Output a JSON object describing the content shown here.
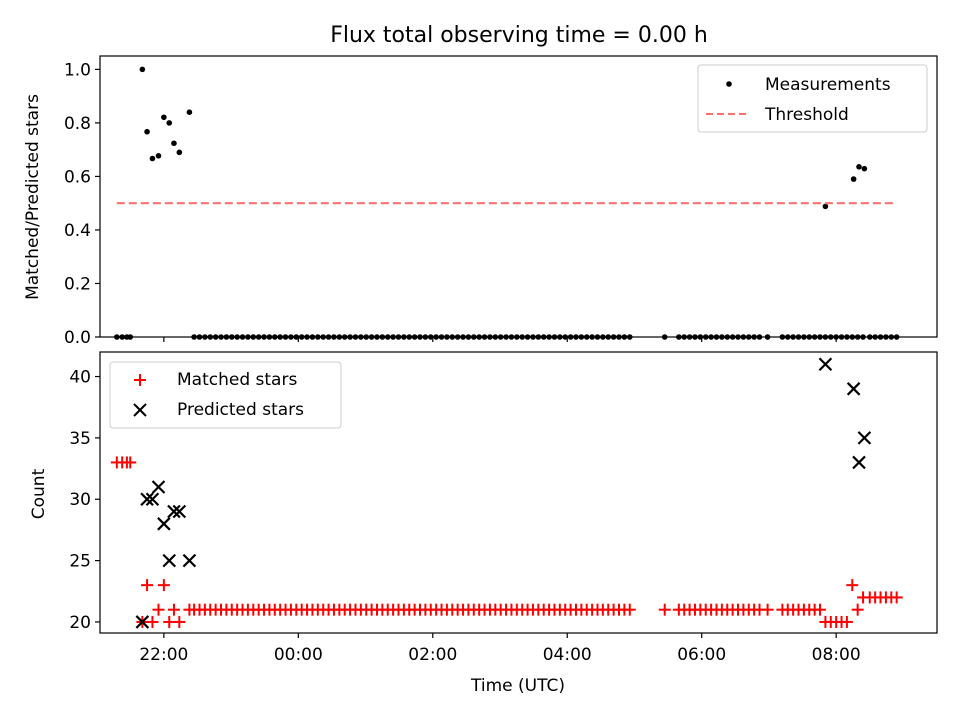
{
  "figure": {
    "title": "Flux total observing time = 0.00 h"
  },
  "colors": {
    "measurement": "#000000",
    "threshold": "#ff7070",
    "matched": "#ff0000",
    "predicted": "#000000",
    "axes": "#000000"
  },
  "chart_data": [
    {
      "type": "scatter",
      "ylabel": "Matched/Predicted stars",
      "xlabel": "",
      "xlim": [
        -2.95,
        9.5
      ],
      "ylim": [
        0,
        1.05
      ],
      "yticks": [
        0.0,
        0.2,
        0.4,
        0.6,
        0.8,
        1.0
      ],
      "ytick_labels": [
        "0.0",
        "0.2",
        "0.4",
        "0.6",
        "0.8",
        "1.0"
      ],
      "xticks": [
        -2,
        0,
        2,
        4,
        6,
        8
      ],
      "grid": false,
      "legend": {
        "placement": "upper right",
        "entries": [
          "Measurements",
          "Threshold"
        ]
      },
      "series": [
        {
          "name": "Measurements",
          "marker": "dot",
          "x": [
            -2.7,
            -2.62,
            -2.55,
            -2.5,
            -2.32,
            -2.25,
            -2.17,
            -2.08,
            -2.0,
            -1.92,
            -1.85,
            -1.77,
            -1.62,
            -1.55,
            -1.47,
            -1.39,
            -1.31,
            -1.23,
            -1.15,
            -1.07,
            -0.99,
            -0.91,
            -0.83,
            -0.75,
            -0.67,
            -0.59,
            -0.51,
            -0.43,
            -0.35,
            -0.27,
            -0.19,
            -0.11,
            -0.03,
            0.05,
            0.13,
            0.21,
            0.29,
            0.37,
            0.45,
            0.53,
            0.61,
            0.69,
            0.77,
            0.85,
            0.93,
            1.01,
            1.09,
            1.17,
            1.25,
            1.33,
            1.41,
            1.49,
            1.57,
            1.65,
            1.73,
            1.81,
            1.89,
            1.97,
            2.05,
            2.13,
            2.21,
            2.29,
            2.37,
            2.45,
            2.53,
            2.61,
            2.69,
            2.77,
            2.85,
            2.93,
            3.01,
            3.09,
            3.17,
            3.25,
            3.33,
            3.41,
            3.49,
            3.57,
            3.65,
            3.73,
            3.81,
            3.89,
            3.97,
            4.05,
            4.13,
            4.21,
            4.29,
            4.37,
            4.45,
            4.53,
            4.61,
            4.69,
            4.77,
            4.85,
            4.93,
            5.45,
            5.66,
            5.74,
            5.82,
            5.9,
            5.98,
            6.06,
            6.14,
            6.22,
            6.3,
            6.38,
            6.46,
            6.54,
            6.62,
            6.7,
            6.78,
            6.86,
            6.98,
            7.2,
            7.28,
            7.36,
            7.44,
            7.52,
            7.6,
            7.68,
            7.76,
            7.84,
            7.92,
            8.0,
            8.08,
            8.16,
            8.24,
            8.32,
            8.4,
            8.5,
            8.58,
            8.66,
            8.74,
            8.82,
            8.9
          ],
          "y": [
            0,
            0,
            0,
            0,
            1.0,
            0.767,
            0.667,
            0.677,
            0.821,
            0.8,
            0.724,
            0.69,
            0.84,
            0,
            0,
            0,
            0,
            0,
            0,
            0,
            0,
            0,
            0,
            0,
            0,
            0,
            0,
            0,
            0,
            0,
            0,
            0,
            0,
            0,
            0,
            0,
            0,
            0,
            0,
            0,
            0,
            0,
            0,
            0,
            0,
            0,
            0,
            0,
            0,
            0,
            0,
            0,
            0,
            0,
            0,
            0,
            0,
            0,
            0,
            0,
            0,
            0,
            0,
            0,
            0,
            0,
            0,
            0,
            0,
            0,
            0,
            0,
            0,
            0,
            0,
            0,
            0,
            0,
            0,
            0,
            0,
            0,
            0,
            0,
            0,
            0,
            0,
            0,
            0,
            0,
            0,
            0,
            0,
            0,
            0,
            0,
            0,
            0,
            0,
            0,
            0,
            0,
            0,
            0,
            0,
            0,
            0,
            0,
            0,
            0,
            0,
            0,
            0,
            0,
            0,
            0,
            0,
            0,
            0,
            0,
            0,
            0,
            0,
            0,
            0,
            0,
            0,
            0,
            0,
            0,
            0,
            0,
            0,
            0,
            0
          ]
        },
        {
          "name": "Measurements",
          "marker": "dot",
          "x": [
            7.84,
            8.26,
            8.34,
            8.42
          ],
          "y": [
            0.488,
            0.59,
            0.636,
            0.629
          ]
        },
        {
          "name": "Threshold",
          "type": "line",
          "style": "dashed",
          "x": [
            -2.7,
            8.9
          ],
          "y": [
            0.5,
            0.5
          ]
        }
      ]
    },
    {
      "type": "scatter",
      "ylabel": "Count",
      "xlabel": "Time (UTC)",
      "xlim": [
        -2.95,
        9.5
      ],
      "ylim": [
        19.1,
        42.0
      ],
      "yticks": [
        20,
        25,
        30,
        35,
        40
      ],
      "ytick_labels": [
        "20",
        "25",
        "30",
        "35",
        "40"
      ],
      "xticks": [
        -2,
        0,
        2,
        4,
        6,
        8
      ],
      "xtick_labels": [
        "22:00",
        "00:00",
        "02:00",
        "04:00",
        "06:00",
        "08:00"
      ],
      "grid": false,
      "legend": {
        "placement": "upper left",
        "entries": [
          "Matched stars",
          "Predicted stars"
        ]
      },
      "series": [
        {
          "name": "Matched stars",
          "marker": "plus",
          "x": [
            -2.7,
            -2.62,
            -2.55,
            -2.5,
            -2.32,
            -2.25,
            -2.17,
            -2.08,
            -2.0,
            -1.92,
            -1.85,
            -1.77,
            -1.62,
            -1.55,
            -1.47,
            -1.39,
            -1.31,
            -1.23,
            -1.15,
            -1.07,
            -0.99,
            -0.91,
            -0.83,
            -0.75,
            -0.67,
            -0.59,
            -0.51,
            -0.43,
            -0.35,
            -0.27,
            -0.19,
            -0.11,
            -0.03,
            0.05,
            0.13,
            0.21,
            0.29,
            0.37,
            0.45,
            0.53,
            0.61,
            0.69,
            0.77,
            0.85,
            0.93,
            1.01,
            1.09,
            1.17,
            1.25,
            1.33,
            1.41,
            1.49,
            1.57,
            1.65,
            1.73,
            1.81,
            1.89,
            1.97,
            2.05,
            2.13,
            2.21,
            2.29,
            2.37,
            2.45,
            2.53,
            2.61,
            2.69,
            2.77,
            2.85,
            2.93,
            3.01,
            3.09,
            3.17,
            3.25,
            3.33,
            3.41,
            3.49,
            3.57,
            3.65,
            3.73,
            3.81,
            3.89,
            3.97,
            4.05,
            4.13,
            4.21,
            4.29,
            4.37,
            4.45,
            4.53,
            4.61,
            4.69,
            4.77,
            4.85,
            4.93,
            5.45,
            5.66,
            5.74,
            5.82,
            5.9,
            5.98,
            6.06,
            6.14,
            6.22,
            6.3,
            6.38,
            6.46,
            6.54,
            6.62,
            6.7,
            6.78,
            6.86,
            6.98,
            7.2,
            7.28,
            7.36,
            7.44,
            7.52,
            7.6,
            7.68,
            7.76,
            7.84,
            7.92,
            8.0,
            8.08,
            8.16,
            8.24,
            8.32,
            8.4,
            8.5,
            8.58,
            8.66,
            8.74,
            8.82,
            8.9
          ],
          "y": [
            33,
            33,
            33,
            33,
            20,
            23,
            20,
            21,
            23,
            20,
            21,
            20,
            21,
            21,
            21,
            21,
            21,
            21,
            21,
            21,
            21,
            21,
            21,
            21,
            21,
            21,
            21,
            21,
            21,
            21,
            21,
            21,
            21,
            21,
            21,
            21,
            21,
            21,
            21,
            21,
            21,
            21,
            21,
            21,
            21,
            21,
            21,
            21,
            21,
            21,
            21,
            21,
            21,
            21,
            21,
            21,
            21,
            21,
            21,
            21,
            21,
            21,
            21,
            21,
            21,
            21,
            21,
            21,
            21,
            21,
            21,
            21,
            21,
            21,
            21,
            21,
            21,
            21,
            21,
            21,
            21,
            21,
            21,
            21,
            21,
            21,
            21,
            21,
            21,
            21,
            21,
            21,
            21,
            21,
            21,
            21,
            21,
            21,
            21,
            21,
            21,
            21,
            21,
            21,
            21,
            21,
            21,
            21,
            21,
            21,
            21,
            21,
            21,
            21,
            21,
            21,
            21,
            21,
            21,
            21,
            21,
            20,
            20,
            20,
            20,
            20,
            23,
            21,
            22,
            22,
            22,
            22,
            22,
            22,
            22
          ]
        },
        {
          "name": "Predicted stars",
          "marker": "x",
          "x": [
            -2.32,
            -2.25,
            -2.17,
            -2.08,
            -2.0,
            -1.92,
            -1.85,
            -1.77,
            -1.62,
            7.84,
            8.26,
            8.34,
            8.42
          ],
          "y": [
            20,
            30,
            30,
            31,
            28,
            25,
            29,
            29,
            25,
            41,
            39,
            33,
            35
          ]
        }
      ]
    }
  ]
}
